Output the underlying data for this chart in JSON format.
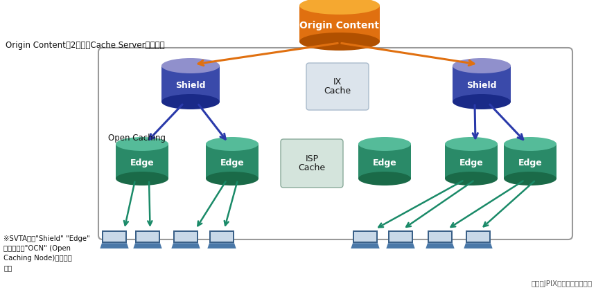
{
  "bg_color": "#ffffff",
  "box_border": "#999999",
  "orange_top": "#f5a830",
  "orange_body": "#e07010",
  "orange_dark": "#b05000",
  "shield_top": "#9090cc",
  "shield_body": "#3a4aaa",
  "shield_dark": "#1a2a88",
  "edge_top": "#55bb99",
  "edge_body": "#2a8a68",
  "edge_dark": "#1a6a48",
  "ix_fill": "#dce4ec",
  "ix_border": "#aabbcc",
  "isp_fill": "#d4e4dc",
  "isp_border": "#88aa99",
  "arrow_orange": "#e07010",
  "arrow_blue": "#2a3aaa",
  "arrow_teal": "#1a8a68",
  "laptop_dark": "#3a6088",
  "laptop_mid": "#4a78a8",
  "laptop_screen_bg": "#c8d8e8",
  "text_dark": "#111111",
  "text_gray": "#555555",
  "label_origin": "Origin Content",
  "label_shield": "Shield",
  "label_edge": "Edge",
  "label_ix_line1": "IX",
  "label_ix_line2": "Cache",
  "label_isp_line1": "ISP",
  "label_isp_line2": "Cache",
  "label_open_caching": "Open Caching",
  "label_top_desc": "Origin Contentを2階層のCache Serverから配信",
  "label_note_line1": "※SVTAは、\"Shield\" \"Edge\"",
  "label_note_line2": "を総称して\"OCN\" (Open",
  "label_note_line3": "Caching Node)と呼んで",
  "label_note_line4": "いる",
  "label_source": "出典：JPIX資料に編集部加筆"
}
